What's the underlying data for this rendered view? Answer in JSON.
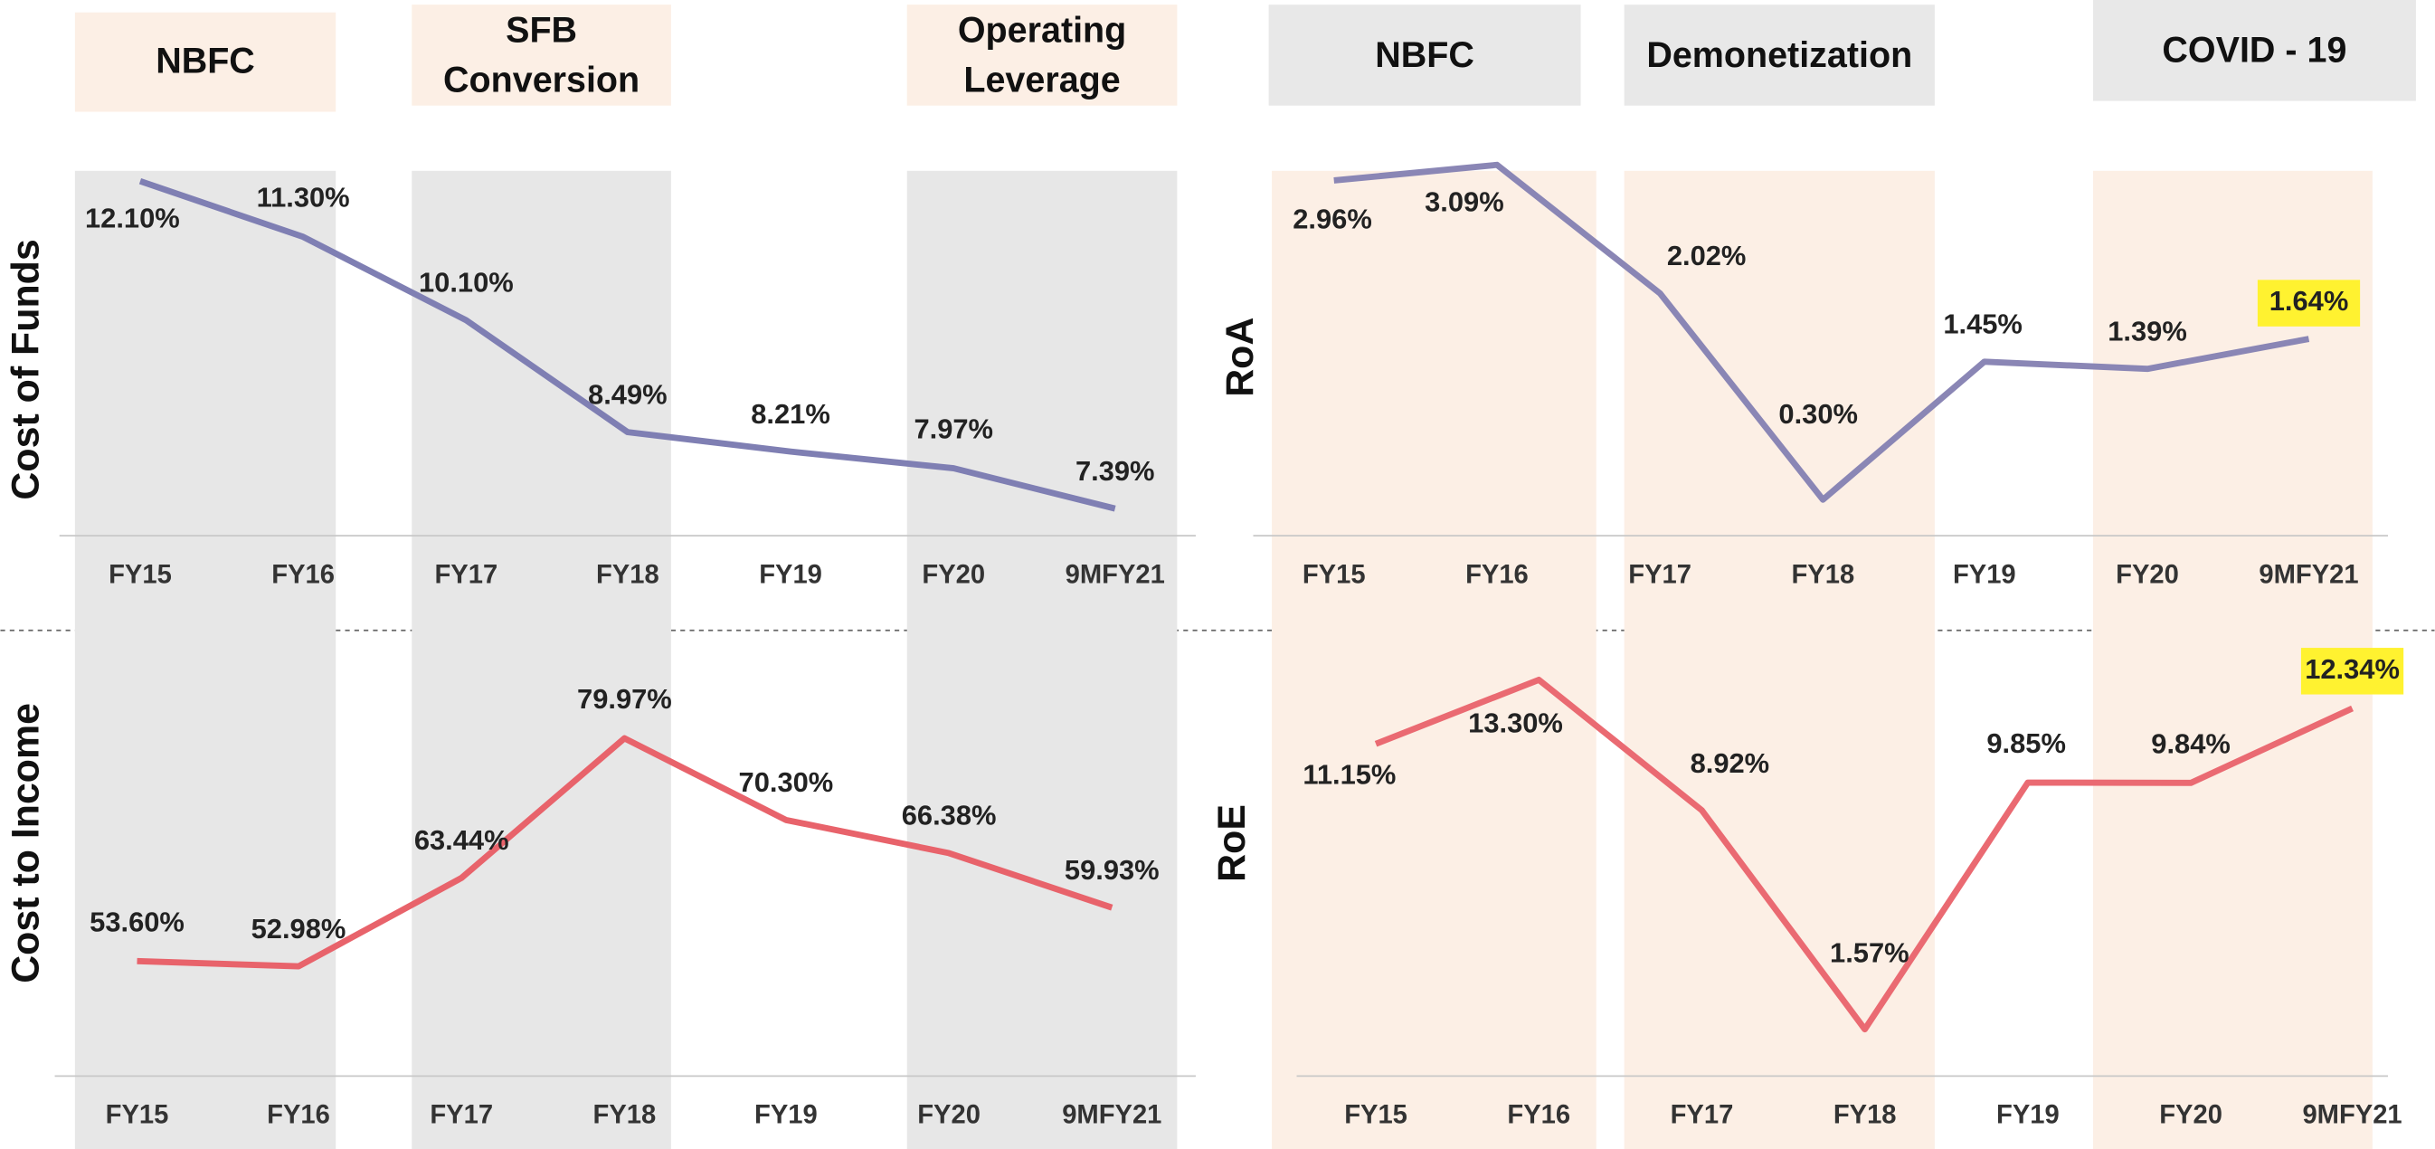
{
  "chart_data": [
    {
      "type": "line",
      "y_label": "Cost of Funds",
      "annotations": [
        "NBFC",
        "SFB Conversion",
        "Operating Leverage"
      ],
      "categories": [
        "FY15",
        "FY16",
        "FY17",
        "FY18",
        "FY19",
        "FY20",
        "9MFY21"
      ],
      "values": [
        12.1,
        11.3,
        10.1,
        8.49,
        8.21,
        7.97,
        7.39
      ],
      "value_labels": [
        "12.10%",
        "11.30%",
        "10.10%",
        "8.49%",
        "8.21%",
        "7.97%",
        "7.39%"
      ],
      "color": "#7f7fb3",
      "ylim": [
        7,
        12.25
      ]
    },
    {
      "type": "line",
      "y_label": "Cost to Income",
      "categories": [
        "FY15",
        "FY16",
        "FY17",
        "FY18",
        "FY19",
        "FY20",
        "9MFY21"
      ],
      "values": [
        53.6,
        52.98,
        63.44,
        79.97,
        70.3,
        66.38,
        59.93
      ],
      "value_labels": [
        "53.60%",
        "52.98%",
        "63.44%",
        "79.97%",
        "70.30%",
        "66.38%",
        "59.93%"
      ],
      "color": "#e8636b",
      "ylim": [
        40,
        92
      ]
    },
    {
      "type": "line",
      "y_label": "RoA",
      "annotations": [
        "NBFC",
        "Demonetization",
        "COVID - 19"
      ],
      "categories": [
        "FY15",
        "FY16",
        "FY17",
        "FY18",
        "FY19",
        "FY20",
        "9MFY21"
      ],
      "values": [
        2.96,
        3.09,
        2.02,
        0.3,
        1.45,
        1.39,
        1.64
      ],
      "value_labels": [
        "2.96%",
        "3.09%",
        "2.02%",
        "0.30%",
        "1.45%",
        "1.39%",
        "1.64%"
      ],
      "color": "#8a86b5",
      "ylim": [
        0,
        3.17
      ],
      "highlight": {
        "index": 6,
        "color": "#fff230"
      }
    },
    {
      "type": "line",
      "y_label": "RoE",
      "categories": [
        "FY15",
        "FY16",
        "FY17",
        "FY18",
        "FY19",
        "FY20",
        "9MFY21"
      ],
      "values": [
        11.15,
        13.3,
        8.92,
        1.57,
        9.85,
        9.84,
        12.34
      ],
      "value_labels": [
        "11.15%",
        "13.30%",
        "8.92%",
        "1.57%",
        "9.85%",
        "9.84%",
        "12.34%"
      ],
      "color": "#ea6a72",
      "ylim": [
        0,
        14.75
      ],
      "highlight": {
        "index": 6,
        "color": "#fff230"
      }
    }
  ]
}
